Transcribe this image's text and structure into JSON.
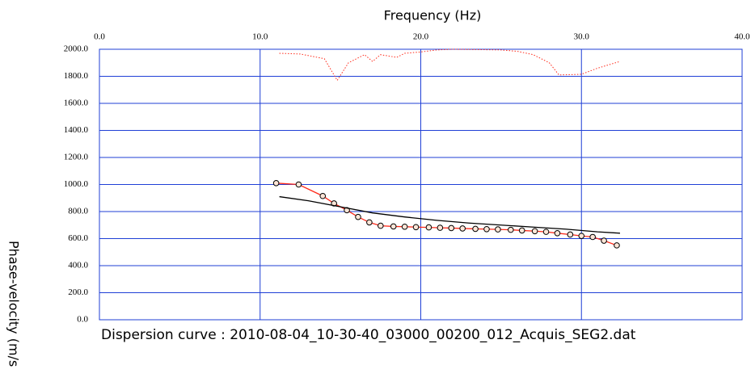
{
  "chart_data": {
    "type": "line",
    "title": "Dispersion curve : 2010-08-04_10-30-40_03000_00200_012_Acquis_SEG2.dat",
    "x_label": "Frequency (Hz)",
    "y_label": "Phase-velocity (m/s",
    "xlim": [
      0,
      40
    ],
    "xticks": [
      {
        "value": 0,
        "label": "0.0"
      },
      {
        "value": 10,
        "label": "10.0"
      },
      {
        "value": 20,
        "label": "20.0"
      },
      {
        "value": 30,
        "label": "30.0"
      },
      {
        "value": 40,
        "label": "40.0"
      }
    ],
    "ylim": [
      0,
      2000
    ],
    "yticks": [
      {
        "value": 0,
        "label": "0.0"
      },
      {
        "value": 200,
        "label": "200.0"
      },
      {
        "value": 400,
        "label": "400.0"
      },
      {
        "value": 600,
        "label": "600.0"
      },
      {
        "value": 800,
        "label": "800.0"
      },
      {
        "value": 1000,
        "label": "1000.0"
      },
      {
        "value": 1200,
        "label": "1200.0"
      },
      {
        "value": 1400,
        "label": "1400.0"
      },
      {
        "value": 1600,
        "label": "1600.0"
      },
      {
        "value": 1800,
        "label": "1800.0"
      },
      {
        "value": 2000,
        "label": "2000.0"
      }
    ],
    "grid": true,
    "grid_color": "#1f3fd6",
    "series": [
      {
        "color": "#ff2a1a",
        "marker": "circle",
        "dashed": false,
        "x": [
          11.0,
          12.4,
          13.9,
          14.6,
          15.4,
          16.1,
          16.8,
          17.5,
          18.3,
          19.0,
          19.7,
          20.5,
          21.2,
          21.9,
          22.6,
          23.4,
          24.1,
          24.8,
          25.6,
          26.3,
          27.1,
          27.8,
          28.5,
          29.3,
          30.0,
          30.7,
          31.4,
          32.2
        ],
        "values": [
          1010,
          1000,
          915,
          860,
          810,
          760,
          720,
          695,
          690,
          688,
          685,
          683,
          680,
          678,
          675,
          672,
          670,
          668,
          665,
          660,
          655,
          650,
          640,
          630,
          620,
          612,
          585,
          550
        ]
      },
      {
        "color": "#000000",
        "marker": "none",
        "dashed": false,
        "x": [
          11.2,
          13,
          15,
          17,
          19,
          21,
          23,
          25,
          27,
          29,
          31,
          32.4
        ],
        "values": [
          910,
          880,
          835,
          790,
          760,
          735,
          715,
          700,
          685,
          670,
          650,
          640
        ]
      },
      {
        "color": "#ff2a1a",
        "marker": "none",
        "dashed": true,
        "x": [
          11.2,
          12.5,
          14,
          14.8,
          15.5,
          16.5,
          17,
          17.5,
          18.5,
          19,
          20,
          21,
          22,
          25,
          26,
          27,
          28,
          28.6,
          30,
          31,
          32.4
        ],
        "values": [
          1970,
          1965,
          1930,
          1770,
          1900,
          1960,
          1910,
          1960,
          1940,
          1970,
          1980,
          1995,
          2000,
          1995,
          1985,
          1960,
          1900,
          1810,
          1815,
          1860,
          1910
        ]
      }
    ]
  }
}
